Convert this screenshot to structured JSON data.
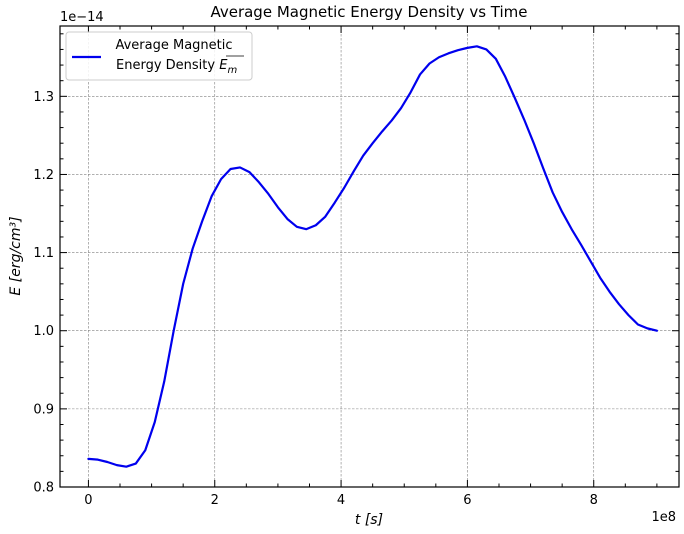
{
  "chart_data": {
    "type": "line",
    "title": "Average Magnetic Energy Density vs Time",
    "xlabel": "t [s]",
    "ylabel": "E [erg/cm³]",
    "x_offset_label": "1e8",
    "y_offset_label": "1e−14",
    "xlim": [
      -0.45,
      9.35
    ],
    "ylim": [
      0.8,
      1.39
    ],
    "x_ticks": [
      0,
      2,
      4,
      6,
      8
    ],
    "x_tick_labels": [
      "0",
      "2",
      "4",
      "6",
      "8"
    ],
    "y_ticks": [
      0.8,
      0.9,
      1.0,
      1.1,
      1.2,
      1.3
    ],
    "y_tick_labels": [
      "0.8",
      "0.9",
      "1.0",
      "1.1",
      "1.2",
      "1.3"
    ],
    "grid": true,
    "legend_position": "top-left",
    "series": [
      {
        "name": "Average Magnetic Energy Density E_m",
        "legend_line1": "Average Magnetic",
        "legend_line2": "Energy Density",
        "legend_symbol": "E",
        "legend_subscript": "m",
        "color": "#0000ee",
        "x": [
          0,
          0.15,
          0.3,
          0.45,
          0.6,
          0.75,
          0.9,
          1.05,
          1.2,
          1.35,
          1.5,
          1.65,
          1.8,
          1.95,
          2.1,
          2.25,
          2.4,
          2.55,
          2.7,
          2.85,
          3.0,
          3.15,
          3.3,
          3.45,
          3.6,
          3.75,
          3.9,
          4.05,
          4.2,
          4.35,
          4.5,
          4.65,
          4.8,
          4.95,
          5.1,
          5.25,
          5.4,
          5.55,
          5.7,
          5.85,
          6.0,
          6.15,
          6.3,
          6.45,
          6.6,
          6.75,
          6.9,
          7.05,
          7.2,
          7.35,
          7.5,
          7.65,
          7.8,
          7.95,
          8.1,
          8.25,
          8.4,
          8.55,
          8.7,
          8.85,
          9.0
        ],
        "y": [
          0.836,
          0.835,
          0.832,
          0.828,
          0.826,
          0.83,
          0.847,
          0.883,
          0.935,
          1.0,
          1.06,
          1.105,
          1.14,
          1.172,
          1.194,
          1.207,
          1.209,
          1.203,
          1.19,
          1.175,
          1.158,
          1.143,
          1.133,
          1.13,
          1.135,
          1.146,
          1.164,
          1.183,
          1.204,
          1.224,
          1.24,
          1.255,
          1.269,
          1.285,
          1.305,
          1.328,
          1.342,
          1.35,
          1.355,
          1.359,
          1.362,
          1.364,
          1.36,
          1.348,
          1.325,
          1.298,
          1.27,
          1.24,
          1.208,
          1.177,
          1.152,
          1.13,
          1.11,
          1.089,
          1.068,
          1.05,
          1.034,
          1.02,
          1.008,
          1.003,
          1.0
        ]
      }
    ]
  }
}
